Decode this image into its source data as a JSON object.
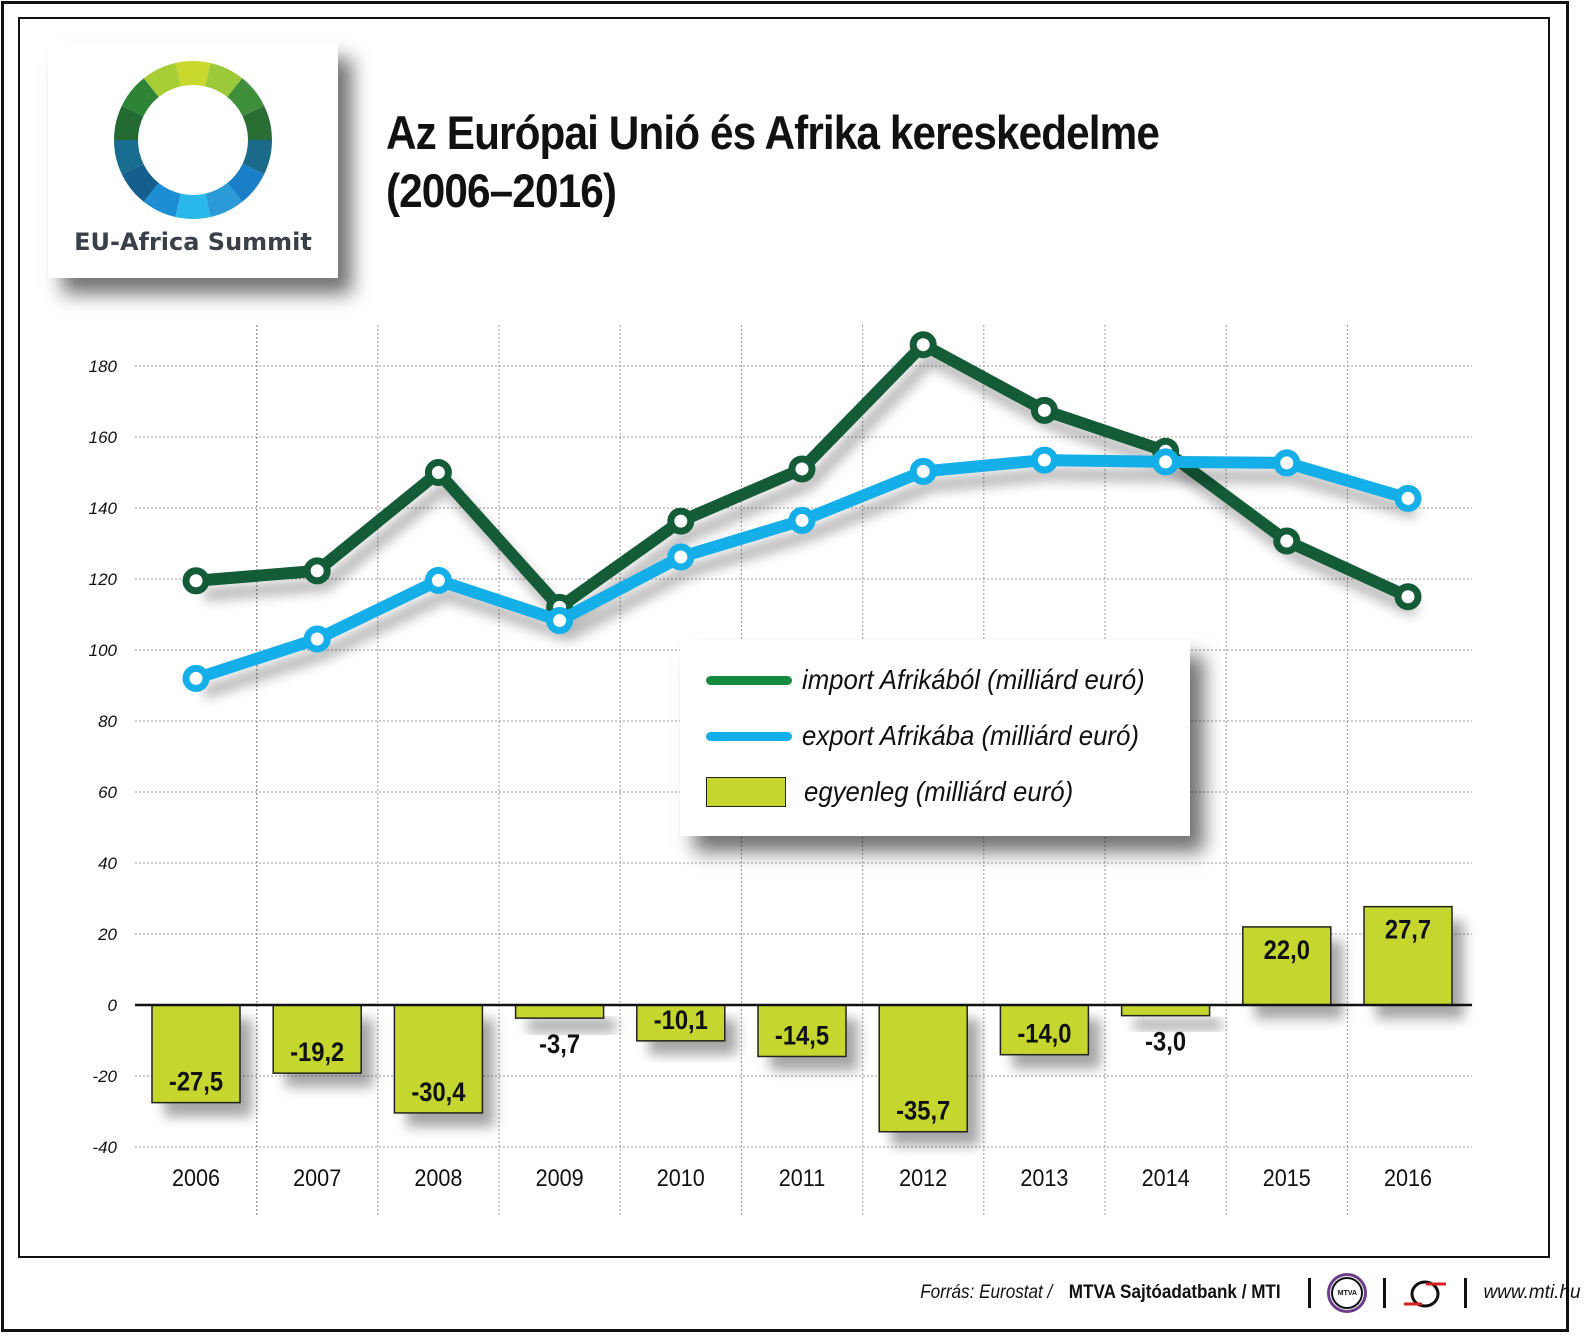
{
  "title": {
    "line1": "Az Európai Unió és Afrika kereskedelme",
    "line2": "(2006–2016)"
  },
  "logo": {
    "text": "EU-Africa Summit"
  },
  "chart_data": {
    "type": "line+bar",
    "categories": [
      "2006",
      "2007",
      "2008",
      "2009",
      "2010",
      "2011",
      "2012",
      "2013",
      "2014",
      "2015",
      "2016"
    ],
    "series": [
      {
        "name": "import Afrikából (milliárd euró)",
        "type": "line",
        "color": "#145c38",
        "values": [
          119.5,
          122.3,
          150.0,
          112.0,
          136.3,
          151.0,
          186.0,
          167.5,
          156.0,
          130.7,
          115.0
        ]
      },
      {
        "name": "export Afrikába (milliárd euró)",
        "type": "line",
        "color": "#14aee8",
        "values": [
          92.0,
          103.1,
          119.6,
          108.3,
          126.2,
          136.5,
          150.3,
          153.5,
          153.0,
          152.7,
          142.7
        ]
      },
      {
        "name": "egyenleg (milliárd euró)",
        "type": "bar",
        "color": "#c5d62e",
        "values": [
          -27.5,
          -19.2,
          -30.4,
          -3.7,
          -10.1,
          -14.5,
          -35.7,
          -14.0,
          -3.0,
          22.0,
          27.7
        ],
        "labels": [
          "-27,5",
          "-19,2",
          "-30,4",
          "-3,7",
          "-10,1",
          "-14,5",
          "-35,7",
          "-14,0",
          "-3,0",
          "22,0",
          "27,7"
        ]
      }
    ],
    "yticks": [
      "-40",
      "-20",
      "0",
      "20",
      "40",
      "60",
      "80",
      "100",
      "120",
      "140",
      "160",
      "180"
    ],
    "ylim": [
      -40,
      180
    ],
    "grid": true,
    "legend": "center-right"
  },
  "footer": {
    "source_prefix": "Forrás: Eurostat / ",
    "source_bold": "MTVA Sajtóadatbank / MTI",
    "mtva_logo": "MTVA",
    "url": "www.mti.hu"
  }
}
